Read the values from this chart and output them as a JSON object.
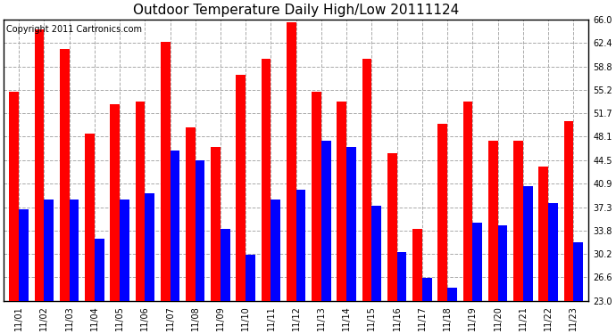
{
  "title": "Outdoor Temperature Daily High/Low 20111124",
  "copyright": "Copyright 2011 Cartronics.com",
  "dates": [
    "11/01",
    "11/02",
    "11/03",
    "11/04",
    "11/05",
    "11/06",
    "11/07",
    "11/08",
    "11/09",
    "11/10",
    "11/11",
    "11/12",
    "11/13",
    "11/14",
    "11/15",
    "11/16",
    "11/17",
    "11/18",
    "11/19",
    "11/20",
    "11/21",
    "11/22",
    "11/23"
  ],
  "highs": [
    55.0,
    64.5,
    61.5,
    48.5,
    53.0,
    53.5,
    62.5,
    49.5,
    46.5,
    57.5,
    60.0,
    65.5,
    55.0,
    53.5,
    60.0,
    45.5,
    34.0,
    50.0,
    53.5,
    47.5,
    47.5,
    43.5,
    50.5
  ],
  "lows": [
    37.0,
    38.5,
    38.5,
    32.5,
    38.5,
    39.5,
    46.0,
    44.5,
    34.0,
    30.0,
    38.5,
    40.0,
    47.5,
    46.5,
    37.5,
    30.5,
    26.5,
    25.0,
    35.0,
    34.5,
    40.5,
    38.0,
    32.0
  ],
  "high_color": "#ff0000",
  "low_color": "#0000ff",
  "bg_color": "#ffffff",
  "grid_color": "#aaaaaa",
  "ymin": 23.0,
  "ymax": 66.0,
  "yticks": [
    23.0,
    26.6,
    30.2,
    33.8,
    37.3,
    40.9,
    44.5,
    48.1,
    51.7,
    55.2,
    58.8,
    62.4,
    66.0
  ],
  "bar_width": 0.38,
  "title_fontsize": 11,
  "copyright_fontsize": 7,
  "tick_fontsize": 7,
  "ytick_fontsize": 7
}
